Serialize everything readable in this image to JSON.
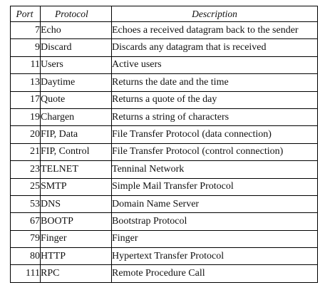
{
  "table": {
    "headers": {
      "port": "Port",
      "protocol": "Protocol",
      "description": "Description"
    },
    "rows": [
      {
        "port": "7",
        "protocol": "Echo",
        "description": "Echoes a received datagram back to the sender"
      },
      {
        "port": "9",
        "protocol": "Discard",
        "description": "Discards any datagram that is received"
      },
      {
        "port": "11",
        "protocol": "Users",
        "description": "Active users"
      },
      {
        "port": "13",
        "protocol": "Daytime",
        "description": "Returns the date and the time"
      },
      {
        "port": "17",
        "protocol": "Quote",
        "description": "Returns a quote of the day"
      },
      {
        "port": "19",
        "protocol": "Chargen",
        "description": "Returns a string of characters"
      },
      {
        "port": "20",
        "protocol": "FIP, Data",
        "description": "File Transfer Protocol (data connection)"
      },
      {
        "port": "21",
        "protocol": "FIP, Control",
        "description": "File Transfer Protocol (control connection)"
      },
      {
        "port": "23",
        "protocol": "TELNET",
        "description": "Tenninal Network"
      },
      {
        "port": "25",
        "protocol": "SMTP",
        "description": "Simple Mail Transfer Protocol"
      },
      {
        "port": "53",
        "protocol": "DNS",
        "description": "Domain Name Server"
      },
      {
        "port": "67",
        "protocol": "BOOTP",
        "description": "Bootstrap Protocol"
      },
      {
        "port": "79",
        "protocol": "Finger",
        "description": "Finger"
      },
      {
        "port": "80",
        "protocol": "HTTP",
        "description": "Hypertext Transfer Protocol"
      },
      {
        "port": "111",
        "protocol": "RPC",
        "description": "Remote Procedure Call"
      }
    ]
  }
}
